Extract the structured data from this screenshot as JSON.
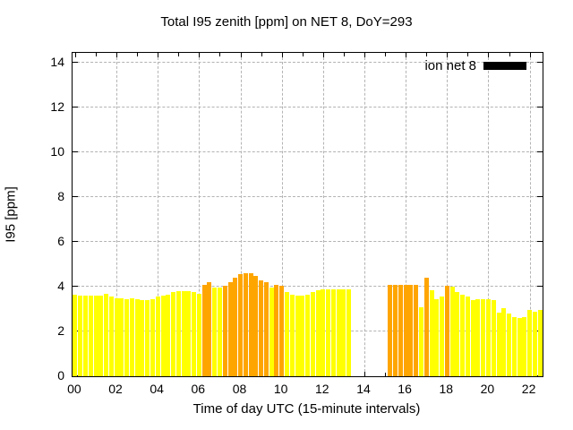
{
  "title": "Total I95 zenith [ppm] on NET 8, DoY=293",
  "legend": {
    "label": "ion net 8",
    "swatch_color": "#000000"
  },
  "axes": {
    "xlabel": "Time of day UTC (15-minute intervals)",
    "ylabel": "I95 [ppm]",
    "x_tick_labels": [
      "00",
      "02",
      "04",
      "06",
      "08",
      "10",
      "12",
      "14",
      "16",
      "18",
      "20",
      "22"
    ],
    "y_tick_labels": [
      "0",
      "2",
      "4",
      "6",
      "8",
      "10",
      "12",
      "14"
    ],
    "grid": true,
    "grid_color": "#b3b3b3"
  },
  "chart_data": {
    "type": "bar",
    "title": "Total I95 zenith [ppm] on NET 8, DoY=293",
    "xlabel": "Time of day UTC (15-minute intervals)",
    "ylabel": "I95 [ppm]",
    "series_name": "ion net 8",
    "interval_minutes": 15,
    "xlim_hours": [
      -0.125,
      22.625
    ],
    "ylim": [
      0,
      14.44
    ],
    "x_ticks_hours": [
      0,
      2,
      4,
      6,
      8,
      10,
      12,
      14,
      16,
      18,
      20,
      22
    ],
    "y_ticks": [
      0,
      2,
      4,
      6,
      8,
      10,
      12,
      14
    ],
    "legend_position": "top-right-inside",
    "data_gap": {
      "from": "13:30",
      "to": "15:00"
    },
    "colors": {
      "yellow": "#ffff00",
      "orange": "#ffa500"
    },
    "bars": [
      [
        "00:00",
        3.65,
        "yellow"
      ],
      [
        "00:15",
        3.6,
        "yellow"
      ],
      [
        "00:30",
        3.6,
        "yellow"
      ],
      [
        "00:45",
        3.6,
        "yellow"
      ],
      [
        "01:00",
        3.6,
        "yellow"
      ],
      [
        "01:15",
        3.6,
        "yellow"
      ],
      [
        "01:30",
        3.7,
        "yellow"
      ],
      [
        "01:45",
        3.55,
        "yellow"
      ],
      [
        "02:00",
        3.5,
        "yellow"
      ],
      [
        "02:15",
        3.5,
        "yellow"
      ],
      [
        "02:30",
        3.45,
        "yellow"
      ],
      [
        "02:45",
        3.5,
        "yellow"
      ],
      [
        "03:00",
        3.45,
        "yellow"
      ],
      [
        "03:15",
        3.4,
        "yellow"
      ],
      [
        "03:30",
        3.4,
        "yellow"
      ],
      [
        "03:45",
        3.45,
        "yellow"
      ],
      [
        "04:00",
        3.55,
        "yellow"
      ],
      [
        "04:15",
        3.6,
        "yellow"
      ],
      [
        "04:30",
        3.65,
        "yellow"
      ],
      [
        "04:45",
        3.75,
        "yellow"
      ],
      [
        "05:00",
        3.8,
        "yellow"
      ],
      [
        "05:15",
        3.8,
        "yellow"
      ],
      [
        "05:30",
        3.8,
        "yellow"
      ],
      [
        "05:45",
        3.75,
        "yellow"
      ],
      [
        "06:00",
        3.7,
        "yellow"
      ],
      [
        "06:15",
        4.1,
        "orange"
      ],
      [
        "06:30",
        4.2,
        "orange"
      ],
      [
        "06:45",
        3.95,
        "yellow"
      ],
      [
        "07:00",
        3.95,
        "yellow"
      ],
      [
        "07:15",
        4.05,
        "orange"
      ],
      [
        "07:30",
        4.2,
        "orange"
      ],
      [
        "07:45",
        4.4,
        "orange"
      ],
      [
        "08:00",
        4.55,
        "orange"
      ],
      [
        "08:15",
        4.6,
        "orange"
      ],
      [
        "08:30",
        4.6,
        "orange"
      ],
      [
        "08:45",
        4.5,
        "orange"
      ],
      [
        "09:00",
        4.3,
        "orange"
      ],
      [
        "09:15",
        4.2,
        "orange"
      ],
      [
        "09:30",
        3.95,
        "yellow"
      ],
      [
        "09:45",
        4.1,
        "orange"
      ],
      [
        "10:00",
        4.05,
        "orange"
      ],
      [
        "10:15",
        3.75,
        "yellow"
      ],
      [
        "10:30",
        3.65,
        "yellow"
      ],
      [
        "10:45",
        3.6,
        "yellow"
      ],
      [
        "11:00",
        3.6,
        "yellow"
      ],
      [
        "11:15",
        3.65,
        "yellow"
      ],
      [
        "11:30",
        3.75,
        "yellow"
      ],
      [
        "11:45",
        3.85,
        "yellow"
      ],
      [
        "12:00",
        3.9,
        "yellow"
      ],
      [
        "12:15",
        3.9,
        "yellow"
      ],
      [
        "12:30",
        3.9,
        "yellow"
      ],
      [
        "12:45",
        3.9,
        "yellow"
      ],
      [
        "13:00",
        3.9,
        "yellow"
      ],
      [
        "13:15",
        3.9,
        "yellow"
      ],
      [
        "13:30",
        0,
        null
      ],
      [
        "13:45",
        0,
        null
      ],
      [
        "14:00",
        0,
        null
      ],
      [
        "14:15",
        0,
        null
      ],
      [
        "14:30",
        0,
        null
      ],
      [
        "14:45",
        0,
        null
      ],
      [
        "15:00",
        0,
        null
      ],
      [
        "15:15",
        4.1,
        "orange"
      ],
      [
        "15:30",
        4.1,
        "orange"
      ],
      [
        "15:45",
        4.1,
        "orange"
      ],
      [
        "16:00",
        4.1,
        "orange"
      ],
      [
        "16:15",
        4.1,
        "orange"
      ],
      [
        "16:30",
        4.1,
        "orange"
      ],
      [
        "16:45",
        3.1,
        "yellow"
      ],
      [
        "17:00",
        4.4,
        "orange"
      ],
      [
        "17:15",
        3.85,
        "yellow"
      ],
      [
        "17:30",
        3.45,
        "yellow"
      ],
      [
        "17:45",
        3.55,
        "yellow"
      ],
      [
        "18:00",
        4.05,
        "orange"
      ],
      [
        "18:15",
        4.0,
        "yellow"
      ],
      [
        "18:30",
        3.75,
        "yellow"
      ],
      [
        "18:45",
        3.65,
        "yellow"
      ],
      [
        "19:00",
        3.55,
        "yellow"
      ],
      [
        "19:15",
        3.4,
        "yellow"
      ],
      [
        "19:30",
        3.45,
        "yellow"
      ],
      [
        "19:45",
        3.45,
        "yellow"
      ],
      [
        "20:00",
        3.45,
        "yellow"
      ],
      [
        "20:15",
        3.4,
        "yellow"
      ],
      [
        "20:30",
        2.85,
        "yellow"
      ],
      [
        "20:45",
        3.05,
        "yellow"
      ],
      [
        "21:00",
        2.8,
        "yellow"
      ],
      [
        "21:15",
        2.65,
        "yellow"
      ],
      [
        "21:30",
        2.6,
        "yellow"
      ],
      [
        "21:45",
        2.65,
        "yellow"
      ],
      [
        "22:00",
        2.95,
        "yellow"
      ],
      [
        "22:15",
        2.9,
        "yellow"
      ],
      [
        "22:30",
        2.95,
        "yellow"
      ]
    ]
  }
}
